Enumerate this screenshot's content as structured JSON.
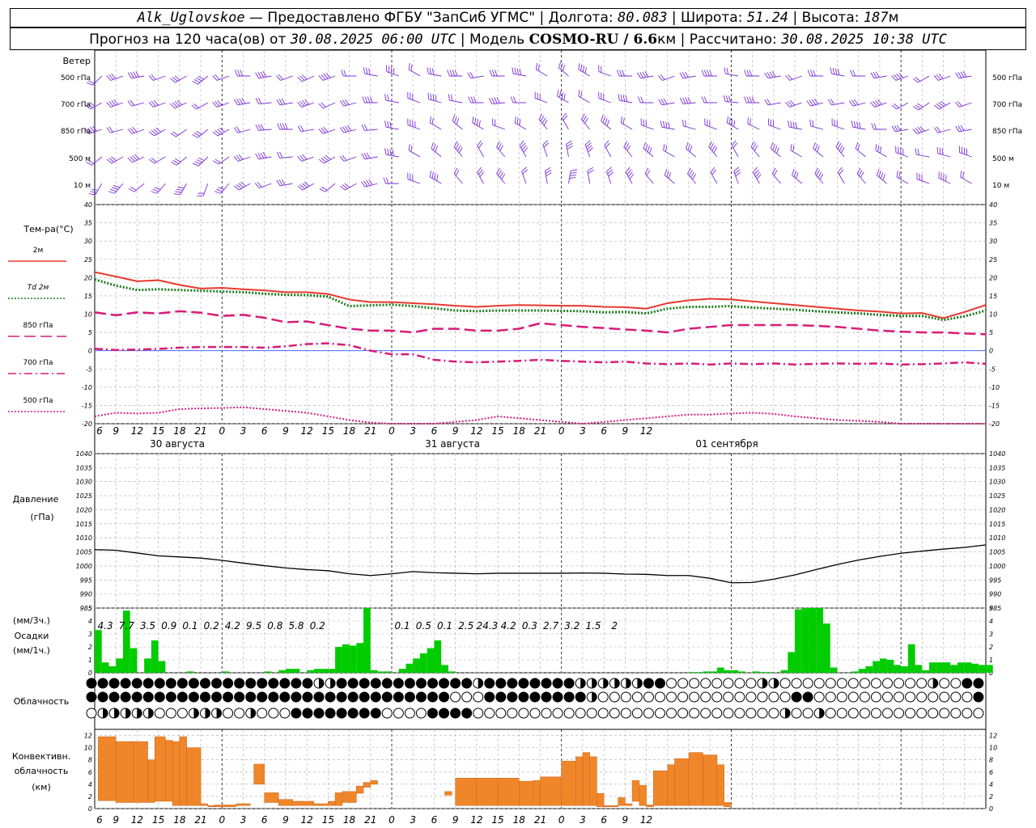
{
  "header": {
    "station": "Alk_Uglovskoe",
    "provider": "— Предоставлено ФГБУ \"ЗапСиб УГМС\"",
    "lon_label": "Долгота:",
    "lon_value": "80.083",
    "lat_label": "Широта:",
    "lat_value": "51.24",
    "alt_label": "Высота:",
    "alt_value": "187",
    "alt_unit": "м",
    "forecast_prefix": "Прогноз на 120 часа(ов) от",
    "forecast_time": "30.08.2025 06:00 UTC",
    "model_label": "Модель",
    "model_name": "COSMO-RU / 6.6",
    "model_unit": "км",
    "calc_label": "Рассчитано:",
    "calc_time": "30.08.2025 10:38 UTC"
  },
  "panels": {
    "wind": {
      "title": "Ветер",
      "levels": [
        "500 гПа",
        "700 гПа",
        "850 гПа",
        "500 м",
        "10  м"
      ]
    },
    "temperature": {
      "title": "Тем-ра(°C)",
      "legend": [
        {
          "label": "2м",
          "color": "#e8382e",
          "dash": "solid"
        },
        {
          "label": "Td  2м",
          "color": "#1a7a1a",
          "dash": "dotted"
        },
        {
          "label": "850 гПа",
          "color": "#d81b7a",
          "dash": "long"
        },
        {
          "label": "700 гПа",
          "color": "#d81b7a",
          "dash": "dashdot"
        },
        {
          "label": "500 гПа",
          "color": "#d81b7a",
          "dash": "dotted"
        }
      ]
    },
    "pressure": {
      "title": "Давление",
      "unit": "(гПа)"
    },
    "precip": {
      "title_unit1": "(мм/3ч.)",
      "title": "Осадки",
      "title_unit2": "(мм/1ч.)"
    },
    "cloud": {
      "title": "Облачность"
    },
    "convective": {
      "title_l1": "Конвективн.",
      "title_l2": "облачность",
      "title_l3": "(км)"
    }
  },
  "time_axis": {
    "hour_labels": [
      "6",
      "9",
      "12",
      "15",
      "18",
      "21",
      "0",
      "3",
      "6",
      "9",
      "12",
      "15",
      "18",
      "21",
      "0",
      "3",
      "6",
      "9",
      "12",
      "15",
      "18",
      "21",
      "0",
      "3",
      "6",
      "9",
      "12"
    ],
    "day_labels": [
      "30 августа",
      "31 августа",
      "01 сентября"
    ]
  },
  "chart_data": [
    {
      "type": "line",
      "title": "Тем-ра(°C)",
      "x_unit": "hours since 30.08.2025 06:00 UTC",
      "ylim": [
        -20,
        40
      ],
      "x": [
        0,
        3,
        6,
        9,
        12,
        15,
        18,
        21,
        24,
        27,
        30,
        33,
        36,
        39,
        42,
        45,
        48,
        51,
        54,
        57,
        60,
        63,
        66,
        69,
        72,
        75,
        78,
        81,
        84,
        87,
        90,
        93,
        96,
        99,
        102,
        105,
        108,
        111,
        114,
        117,
        120,
        123,
        126
      ],
      "series": [
        {
          "name": "2м",
          "values": [
            21.5,
            20.3,
            19,
            19.3,
            18,
            17,
            17.2,
            16.8,
            16.5,
            16,
            16,
            15.5,
            14,
            13.3,
            13.3,
            13,
            12.7,
            12.3,
            12,
            12.3,
            12.5,
            12.4,
            12.3,
            12.3,
            12,
            11.9,
            11.5,
            13,
            13.8,
            14.2,
            14,
            13.5,
            13,
            12.5,
            12,
            11.5,
            11,
            10.7,
            10.2,
            10.3,
            8.9,
            10.6,
            12.5
          ]
        },
        {
          "name": "Td  2м",
          "values": [
            19.5,
            17.8,
            16.6,
            16.8,
            16.6,
            16.4,
            16.2,
            16,
            15.6,
            15.3,
            15.2,
            14.8,
            12.2,
            12.4,
            12.6,
            12.2,
            11.6,
            11,
            10.8,
            11,
            11,
            11,
            10.9,
            10.8,
            10.5,
            10.6,
            10.2,
            11.5,
            12,
            12,
            12.2,
            11.8,
            11.5,
            11.2,
            10.8,
            10.5,
            10.2,
            9.8,
            9.5,
            9.5,
            8.4,
            9.4,
            11
          ]
        },
        {
          "name": "850 гПа",
          "values": [
            10.5,
            9.7,
            10.5,
            10.2,
            10.8,
            10.4,
            9.5,
            9.8,
            9,
            7.8,
            8,
            7,
            6,
            5.5,
            5.5,
            5,
            6,
            6,
            5.5,
            5.5,
            6,
            7.5,
            7,
            6.5,
            6.2,
            5.8,
            5.5,
            5,
            6,
            6.5,
            7,
            7,
            7,
            7,
            6.8,
            6.5,
            6,
            5.5,
            5.2,
            5,
            5,
            4.7,
            4.5
          ]
        },
        {
          "name": "700 гПа",
          "values": [
            0.5,
            0.2,
            0.3,
            0.5,
            0.8,
            1,
            1,
            1,
            0.8,
            1.2,
            1.8,
            2,
            1.5,
            0,
            -1,
            -1,
            -2.5,
            -3,
            -3.2,
            -3,
            -2.8,
            -2.5,
            -2.8,
            -3,
            -3.2,
            -3,
            -3.5,
            -3.7,
            -3.5,
            -3.8,
            -3.5,
            -3.7,
            -3.5,
            -3.8,
            -3.6,
            -3.5,
            -3.6,
            -3.5,
            -3.8,
            -3.7,
            -3.5,
            -3.2,
            -3.6
          ]
        },
        {
          "name": "500 гПа",
          "values": [
            -18,
            -17,
            -17.2,
            -17,
            -16,
            -15.8,
            -15.7,
            -15.5,
            -16,
            -16.5,
            -17,
            -18,
            -19,
            -19.7,
            -20,
            -20.2,
            -20,
            -19.5,
            -19,
            -18,
            -18.5,
            -19,
            -19.5,
            -20,
            -19.5,
            -19,
            -18.5,
            -18,
            -17.5,
            -17.5,
            -17.2,
            -17,
            -17.3,
            -18,
            -18.5,
            -19,
            -19.2,
            -19.5,
            -20,
            -20.2,
            -20,
            -20.3,
            -20.5
          ]
        }
      ]
    },
    {
      "type": "line",
      "title": "Давление",
      "ylabel": "(гПа)",
      "x_unit": "hours since 30.08.2025 06:00 UTC",
      "ylim": [
        985,
        1040
      ],
      "x": [
        0,
        3,
        6,
        9,
        12,
        15,
        18,
        21,
        24,
        27,
        30,
        33,
        36,
        39,
        42,
        45,
        48,
        51,
        54,
        57,
        60,
        63,
        66,
        69,
        72,
        75,
        78,
        81,
        84,
        87,
        90,
        93,
        96,
        99,
        102,
        105,
        108,
        111,
        114,
        117,
        120,
        123,
        126
      ],
      "series": [
        {
          "name": "p",
          "values": [
            1005.8,
            1005.6,
            1004.6,
            1003.6,
            1003.2,
            1002.8,
            1002,
            1001,
            1000.1,
            999.3,
            998.7,
            998.3,
            997.2,
            996.6,
            997.2,
            998,
            997.6,
            997.4,
            997.2,
            997.4,
            997.4,
            997.4,
            997.4,
            997.5,
            997.4,
            997.1,
            997,
            996.6,
            996.6,
            995.6,
            994,
            994.1,
            995.3,
            996.8,
            998.7,
            1000.5,
            1002.1,
            1003.4,
            1004.5,
            1005.3,
            1006,
            1006.6,
            1007.5
          ]
        }
      ]
    },
    {
      "type": "bar",
      "title": "Осадки",
      "ylabel": "(мм/1ч.)",
      "ylim": [
        0,
        5
      ],
      "x_unit": "hours since 30.08.2025 06:00 UTC",
      "hourly_x": [
        0,
        1,
        2,
        3,
        4,
        5,
        6,
        7,
        8,
        9,
        10,
        11,
        12,
        13,
        14,
        15,
        16,
        17,
        18,
        19,
        20,
        21,
        22,
        23,
        24,
        25,
        26,
        27,
        28,
        29,
        30,
        31,
        32,
        33,
        34,
        35,
        36,
        37,
        38,
        39,
        40,
        41,
        42,
        43,
        44,
        45,
        46,
        47,
        48,
        49,
        50,
        51,
        52,
        53,
        54,
        55,
        56,
        57,
        58,
        59,
        60,
        61,
        62,
        63,
        64,
        65,
        66,
        67,
        68,
        69,
        70,
        71,
        72,
        73,
        74,
        75,
        76,
        77,
        78,
        79,
        80,
        81,
        82,
        83,
        84,
        85,
        86,
        87,
        88,
        89,
        90,
        91,
        92,
        93,
        94,
        95,
        96,
        97,
        98,
        99,
        100,
        101,
        102,
        103,
        104,
        105,
        106,
        107,
        108,
        109,
        110,
        111,
        112,
        113,
        114,
        115,
        116,
        117,
        118,
        119,
        120,
        121,
        122,
        123,
        124,
        125,
        126
      ],
      "hourly_values": [
        3.3,
        0.8,
        0.5,
        1.1,
        4.8,
        1.9,
        0,
        1.1,
        2.5,
        0.9,
        0,
        0,
        0,
        0.1,
        0,
        0,
        0,
        0,
        0.1,
        0,
        0,
        0,
        0,
        0,
        0.1,
        0,
        0.2,
        0.3,
        0.3,
        0,
        0.2,
        0.3,
        0.3,
        0.3,
        2.0,
        2.2,
        2.1,
        2.3,
        5.9,
        0.2,
        0.1,
        0.1,
        0,
        0.3,
        0.7,
        1.1,
        1.5,
        1.9,
        2.5,
        0.6,
        0.1,
        0,
        0,
        0,
        0,
        0,
        0,
        0,
        0,
        0,
        0,
        0,
        0,
        0,
        0,
        0,
        0,
        0,
        0,
        0,
        0,
        0,
        0,
        0,
        0,
        0,
        0,
        0,
        0,
        0,
        0,
        0,
        0,
        0,
        0.05,
        0.05,
        0.1,
        0.1,
        0.4,
        0.2,
        0.2,
        0.1,
        0,
        0.1,
        0.05,
        0.05,
        0,
        0.2,
        1.6,
        4.9,
        5,
        5,
        5,
        3.8,
        0.4,
        0,
        0,
        0.1,
        0.3,
        0.5,
        0.9,
        1.1,
        1.0,
        0.6,
        0.5,
        2.2,
        0.6,
        0.2,
        0.8,
        0.8,
        0.8,
        0.6,
        0.8,
        0.8,
        0.7,
        0.6,
        0.6
      ],
      "three_hour_totals": [
        "4.3",
        "7.7",
        "3.5",
        "0.9",
        "0.1",
        "0.2",
        "4.2",
        "9.5",
        "0.8",
        "5.8",
        "0.2",
        "0.1",
        "0.5",
        "0.1",
        "2.5",
        "24.3",
        "4.2",
        "0.3",
        "2.7",
        "3.2",
        "1.5",
        "2"
      ]
    },
    {
      "type": "bar",
      "title": "Конвективн. облачность",
      "ylabel": "(км)",
      "ylim": [
        0,
        13
      ],
      "x_unit": "hours since 30.08.2025 06:00 UTC",
      "segments": [
        {
          "x0": 0.5,
          "x1": 3,
          "base": 1.3,
          "top": 11.8
        },
        {
          "x0": 3,
          "x1": 5.5,
          "base": 1.0,
          "top": 11.0
        },
        {
          "x0": 5.5,
          "x1": 7.5,
          "base": 1.0,
          "top": 11.0
        },
        {
          "x0": 7.5,
          "x1": 8.5,
          "base": 1.0,
          "top": 8.0
        },
        {
          "x0": 8.5,
          "x1": 10,
          "base": 1.2,
          "top": 11.8
        },
        {
          "x0": 10,
          "x1": 11,
          "base": 1.2,
          "top": 11.2
        },
        {
          "x0": 11,
          "x1": 12,
          "base": 0.5,
          "top": 11.0
        },
        {
          "x0": 12,
          "x1": 13,
          "base": 0.5,
          "top": 11.8
        },
        {
          "x0": 13,
          "x1": 15,
          "base": 0.5,
          "top": 10.0
        },
        {
          "x0": 15,
          "x1": 16,
          "base": 0.5,
          "top": 0.8
        },
        {
          "x0": 16,
          "x1": 17,
          "base": 0.3,
          "top": 0.5
        },
        {
          "x0": 17,
          "x1": 20,
          "base": 0.3,
          "top": 0.6
        },
        {
          "x0": 20,
          "x1": 22,
          "base": 0.5,
          "top": 0.8
        },
        {
          "x0": 22.5,
          "x1": 24,
          "base": 4.0,
          "top": 7.3
        },
        {
          "x0": 24,
          "x1": 26,
          "base": 1.0,
          "top": 2.6
        },
        {
          "x0": 26,
          "x1": 28,
          "base": 0.5,
          "top": 1.5
        },
        {
          "x0": 28,
          "x1": 31,
          "base": 0.5,
          "top": 1.2
        },
        {
          "x0": 31,
          "x1": 33,
          "base": 0.5,
          "top": 0.8
        },
        {
          "x0": 33,
          "x1": 34,
          "base": 0.5,
          "top": 1.2
        },
        {
          "x0": 34,
          "x1": 35,
          "base": 0.5,
          "top": 2.6
        },
        {
          "x0": 35,
          "x1": 37,
          "base": 1.0,
          "top": 2.8
        },
        {
          "x0": 37,
          "x1": 38,
          "base": 2.5,
          "top": 3.7
        },
        {
          "x0": 38,
          "x1": 39,
          "base": 3.5,
          "top": 4.3
        },
        {
          "x0": 39,
          "x1": 40,
          "base": 4.0,
          "top": 4.6
        },
        {
          "x0": 49.5,
          "x1": 50.5,
          "base": 2.2,
          "top": 2.8
        },
        {
          "x0": 51,
          "x1": 54,
          "base": 0.5,
          "top": 5.0
        },
        {
          "x0": 54,
          "x1": 57,
          "base": 0.5,
          "top": 5.0
        },
        {
          "x0": 57,
          "x1": 60,
          "base": 0.5,
          "top": 5.0
        },
        {
          "x0": 60,
          "x1": 62,
          "base": 0.5,
          "top": 4.5
        },
        {
          "x0": 62,
          "x1": 63,
          "base": 0.5,
          "top": 4.6
        },
        {
          "x0": 63,
          "x1": 66,
          "base": 0.5,
          "top": 5.2
        },
        {
          "x0": 66,
          "x1": 68,
          "base": 0.5,
          "top": 7.8
        },
        {
          "x0": 68,
          "x1": 69,
          "base": 0.5,
          "top": 8.5
        },
        {
          "x0": 69,
          "x1": 70,
          "base": 0.5,
          "top": 9.2
        },
        {
          "x0": 70,
          "x1": 71,
          "base": 0.5,
          "top": 8.5
        },
        {
          "x0": 71,
          "x1": 72,
          "base": 0.3,
          "top": 2.5
        },
        {
          "x0": 72,
          "x1": 74,
          "base": 0.3,
          "top": 0.5
        },
        {
          "x0": 74,
          "x1": 75,
          "base": 0.5,
          "top": 1.8
        },
        {
          "x0": 75,
          "x1": 76,
          "base": 0.5,
          "top": 0.8
        },
        {
          "x0": 76,
          "x1": 77,
          "base": 1.2,
          "top": 4.6
        },
        {
          "x0": 77,
          "x1": 78,
          "base": 0.5,
          "top": 3.8
        },
        {
          "x0": 78,
          "x1": 79,
          "base": 0.3,
          "top": 0.6
        },
        {
          "x0": 79,
          "x1": 81,
          "base": 0.5,
          "top": 6.2
        },
        {
          "x0": 81,
          "x1": 82,
          "base": 0.5,
          "top": 7.2
        },
        {
          "x0": 82,
          "x1": 84,
          "base": 0.5,
          "top": 8.2
        },
        {
          "x0": 84,
          "x1": 86,
          "base": 0.5,
          "top": 9.2
        },
        {
          "x0": 86,
          "x1": 88,
          "base": 0.5,
          "top": 8.8
        },
        {
          "x0": 88,
          "x1": 89,
          "base": 0.5,
          "top": 7.2
        },
        {
          "x0": 89,
          "x1": 90,
          "base": 0.3,
          "top": 1.0
        }
      ]
    }
  ],
  "colors": {
    "wind": "#7b2fd8",
    "t2m": "#e8382e",
    "td2m": "#1a7a1a",
    "upper": "#d81b7a",
    "pressure": "#000000",
    "precip": "#00cc00",
    "convective": "#f0862a"
  }
}
